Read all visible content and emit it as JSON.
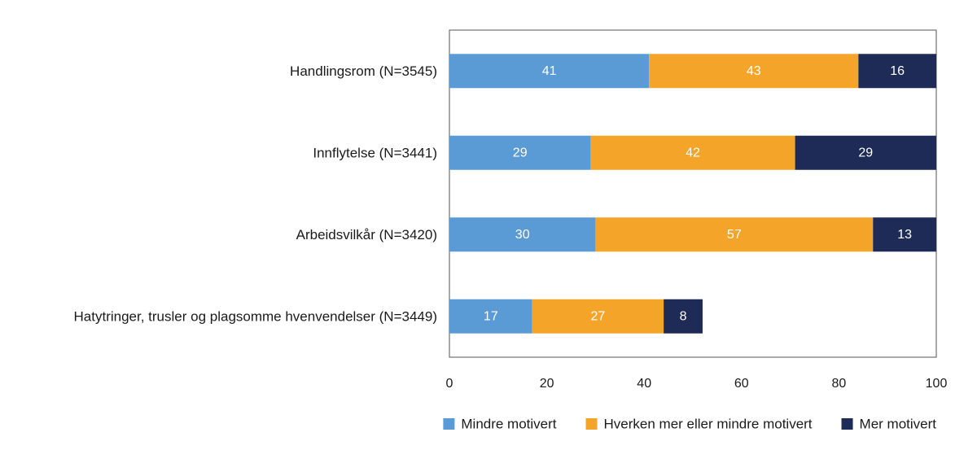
{
  "chart_data": {
    "type": "bar",
    "orientation": "horizontal",
    "stacked": true,
    "title": "",
    "xlabel": "",
    "ylabel": "",
    "xlim": [
      0,
      100
    ],
    "xticks": [
      0,
      20,
      40,
      60,
      80,
      100
    ],
    "grid": false,
    "legend_position": "bottom-right",
    "categories": [
      "Handlingsrom (N=3545)",
      "Innflytelse (N=3441)",
      "Arbeidsvilkår (N=3420)",
      "Hatytringer, trusler og plagsomme hvenvendelser (N=3449)"
    ],
    "series": [
      {
        "name": "Mindre motivert",
        "color": "#5b9bd5",
        "label_color": "#ffffff",
        "values": [
          41,
          29,
          30,
          17
        ]
      },
      {
        "name": "Hverken mer eller mindre motivert",
        "color": "#f5a42a",
        "label_color": "#ffffff",
        "values": [
          43,
          42,
          57,
          27
        ]
      },
      {
        "name": "Mer motivert",
        "color": "#1f2b57",
        "label_color": "#ffffff",
        "values": [
          16,
          29,
          13,
          8
        ]
      }
    ]
  }
}
